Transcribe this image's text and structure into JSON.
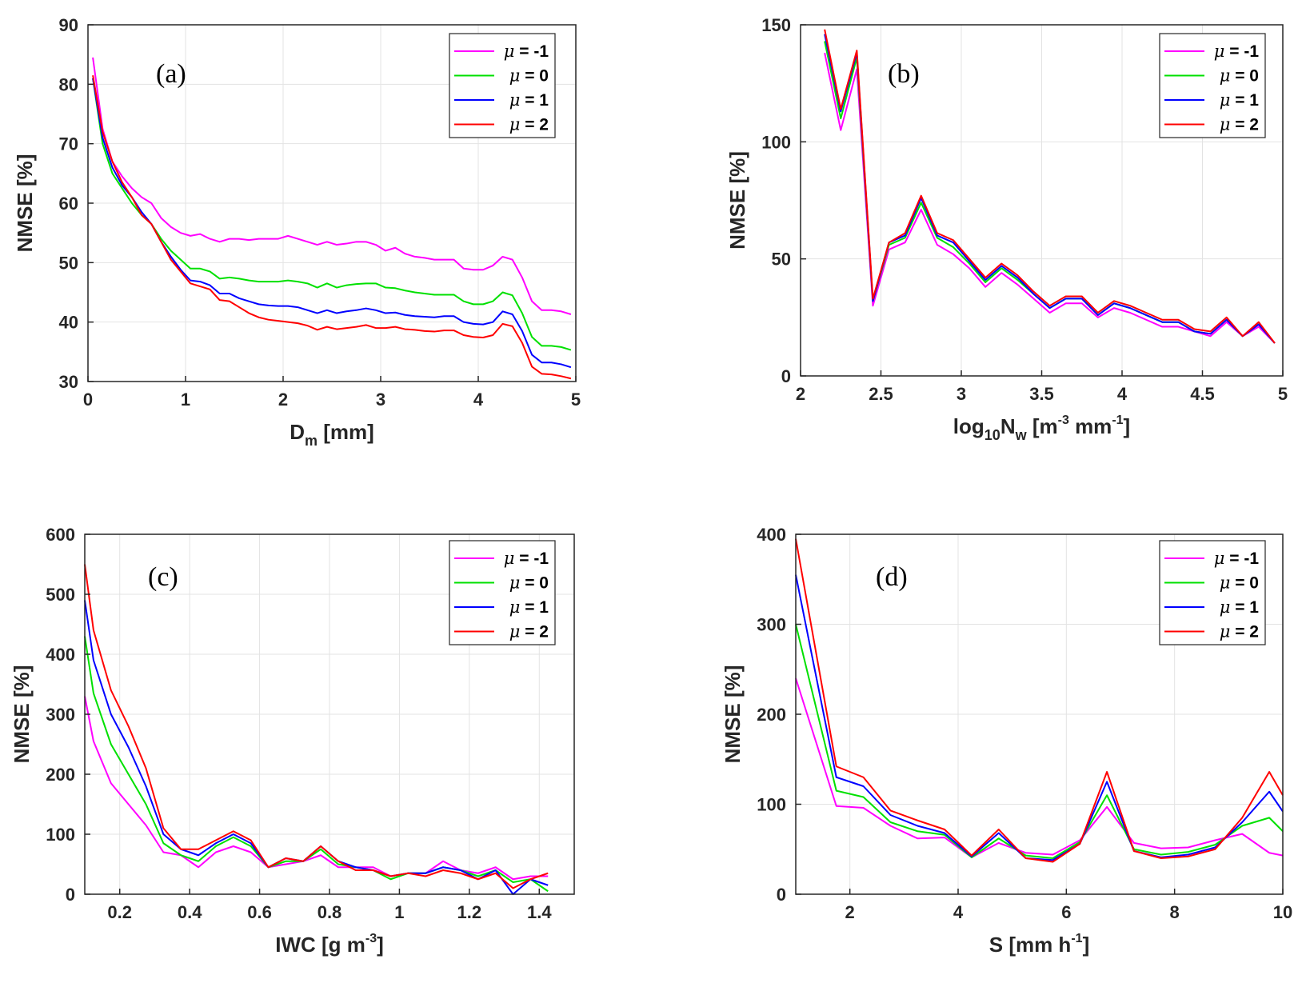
{
  "colors": {
    "mu_-1": "#ff00ff",
    "mu_0": "#00e000",
    "mu_1": "#0000ff",
    "mu_2": "#ff0000"
  },
  "chart_data": [
    {
      "type": "line",
      "panel": "(a)",
      "xlabel": {
        "main": "D",
        "sub": "m",
        "tail": " [mm]"
      },
      "ylabel": "NMSE [%]",
      "xlim": [
        0,
        5
      ],
      "ylim": [
        30,
        90
      ],
      "xticks": [
        0,
        1,
        2,
        3,
        4,
        5
      ],
      "yticks": [
        30,
        40,
        50,
        60,
        70,
        80,
        90
      ],
      "grid": true,
      "legend": "top-right",
      "x": [
        0.05,
        0.15,
        0.25,
        0.35,
        0.45,
        0.55,
        0.65,
        0.75,
        0.85,
        0.95,
        1.05,
        1.15,
        1.25,
        1.35,
        1.45,
        1.55,
        1.65,
        1.75,
        1.85,
        1.95,
        2.05,
        2.15,
        2.25,
        2.35,
        2.45,
        2.55,
        2.65,
        2.75,
        2.85,
        2.95,
        3.05,
        3.15,
        3.25,
        3.35,
        3.45,
        3.55,
        3.65,
        3.75,
        3.85,
        3.95,
        4.05,
        4.15,
        4.25,
        4.35,
        4.45,
        4.55,
        4.65,
        4.75,
        4.85,
        4.95
      ],
      "series": [
        {
          "name": "μ = -1",
          "color_key": "mu_-1",
          "values": [
            84.5,
            72.5,
            67,
            64.5,
            62.5,
            61,
            60,
            57.5,
            56,
            55,
            54.5,
            54.8,
            54,
            53.5,
            54,
            54,
            53.8,
            54,
            54,
            54,
            54.5,
            54,
            53.5,
            53,
            53.5,
            53,
            53.2,
            53.5,
            53.5,
            53,
            52,
            52.5,
            51.5,
            51,
            50.8,
            50.5,
            50.5,
            50.5,
            49,
            48.8,
            48.8,
            49.5,
            51,
            50.5,
            47.5,
            43.5,
            42,
            42,
            41.8,
            41.3
          ]
        },
        {
          "name": "μ = 0",
          "color_key": "mu_0",
          "values": [
            81,
            70,
            65,
            62.5,
            60,
            58,
            56.5,
            54,
            52,
            50.5,
            49,
            49,
            48.5,
            47.3,
            47.5,
            47.3,
            47,
            46.8,
            46.8,
            46.8,
            47,
            46.8,
            46.5,
            45.8,
            46.5,
            45.8,
            46.2,
            46.4,
            46.5,
            46.5,
            45.8,
            45.7,
            45.3,
            45,
            44.8,
            44.6,
            44.6,
            44.6,
            43.5,
            43,
            43,
            43.5,
            45,
            44.5,
            41.5,
            37.5,
            36,
            36,
            35.8,
            35.3
          ]
        },
        {
          "name": "μ = 1",
          "color_key": "mu_1",
          "values": [
            81,
            71,
            66,
            63,
            61,
            58.5,
            56.5,
            53.5,
            51,
            48.8,
            47,
            46.8,
            46.2,
            44.8,
            44.8,
            44,
            43.5,
            43,
            42.8,
            42.7,
            42.7,
            42.5,
            42,
            41.5,
            42,
            41.5,
            41.8,
            42,
            42.3,
            42,
            41.5,
            41.6,
            41.2,
            41,
            40.9,
            40.8,
            41,
            41,
            40,
            39.7,
            39.6,
            40,
            41.8,
            41.3,
            38.5,
            34.5,
            33.2,
            33.2,
            32.9,
            32.4
          ]
        },
        {
          "name": "μ = 2",
          "color_key": "mu_2",
          "values": [
            81.5,
            72,
            67,
            63.5,
            61,
            58,
            56.5,
            53.5,
            50.5,
            48.5,
            46.5,
            46,
            45.5,
            43.7,
            43.5,
            42.5,
            41.5,
            40.8,
            40.4,
            40.2,
            40,
            39.8,
            39.4,
            38.7,
            39.2,
            38.8,
            39,
            39.2,
            39.5,
            39,
            39,
            39.2,
            38.8,
            38.7,
            38.5,
            38.4,
            38.6,
            38.6,
            37.8,
            37.5,
            37.4,
            37.8,
            39.7,
            39.3,
            36.5,
            32.5,
            31.3,
            31.2,
            30.9,
            30.5
          ]
        }
      ]
    },
    {
      "type": "line",
      "panel": "(b)",
      "xlabel": {
        "pre": "log",
        "sub": "10",
        "main": "N",
        "sub2": "w",
        "tail": " [m",
        "sup": "-3",
        "tail2": " mm",
        "sup2": "-1",
        "end": "]"
      },
      "ylabel": "NMSE [%]",
      "xlim": [
        2,
        5
      ],
      "ylim": [
        0,
        150
      ],
      "xticks": [
        2,
        2.5,
        3,
        3.5,
        4,
        4.5,
        5
      ],
      "yticks": [
        0,
        50,
        100,
        150
      ],
      "grid": true,
      "legend": "top-right",
      "x": [
        2.15,
        2.25,
        2.35,
        2.45,
        2.55,
        2.65,
        2.75,
        2.85,
        2.95,
        3.05,
        3.15,
        3.25,
        3.35,
        3.45,
        3.55,
        3.65,
        3.75,
        3.85,
        3.95,
        4.05,
        4.15,
        4.25,
        4.35,
        4.45,
        4.55,
        4.65,
        4.75,
        4.85,
        4.95
      ],
      "series": [
        {
          "name": "μ = -1",
          "color_key": "mu_-1",
          "values": [
            138,
            105,
            131,
            30,
            54,
            57,
            71,
            56,
            52,
            46,
            38,
            44,
            39,
            33,
            27,
            31,
            31,
            25,
            29,
            27,
            24,
            21,
            21,
            19,
            17,
            23,
            17,
            21,
            14
          ]
        },
        {
          "name": "μ = 0",
          "color_key": "mu_0",
          "values": [
            143,
            110,
            136,
            32,
            56,
            59,
            74,
            59,
            55,
            48,
            40,
            46,
            41,
            35,
            29,
            33,
            33,
            26,
            31,
            29,
            26,
            23,
            23,
            19,
            18,
            24,
            17,
            22,
            14
          ]
        },
        {
          "name": "μ = 1",
          "color_key": "mu_1",
          "values": [
            146,
            113,
            138,
            32,
            57,
            60,
            76,
            60,
            57,
            49,
            41,
            47,
            42,
            35,
            29,
            33,
            33,
            26,
            31,
            29,
            26,
            23,
            23,
            19,
            18,
            24,
            17,
            22,
            14
          ]
        },
        {
          "name": "μ = 2",
          "color_key": "mu_2",
          "values": [
            148,
            114,
            139,
            33,
            57,
            61,
            77,
            61,
            58,
            50,
            42,
            48,
            43,
            36,
            30,
            34,
            34,
            27,
            32,
            30,
            27,
            24,
            24,
            20,
            19,
            25,
            17,
            23,
            14
          ]
        }
      ]
    },
    {
      "type": "line",
      "panel": "(c)",
      "xlabel": {
        "main": "IWC [g m",
        "sup": "-3",
        "end": "]"
      },
      "ylabel": "NMSE [%]",
      "xlim": [
        0.1,
        1.5
      ],
      "ylim": [
        0,
        600
      ],
      "xticks": [
        0.2,
        0.4,
        0.6,
        0.8,
        1,
        1.2,
        1.4
      ],
      "yticks": [
        0,
        100,
        200,
        300,
        400,
        500,
        600
      ],
      "grid": true,
      "legend": "top-right",
      "x": [
        0.1,
        0.125,
        0.175,
        0.225,
        0.275,
        0.325,
        0.375,
        0.425,
        0.475,
        0.525,
        0.575,
        0.625,
        0.675,
        0.725,
        0.775,
        0.825,
        0.875,
        0.925,
        0.975,
        1.025,
        1.075,
        1.125,
        1.175,
        1.225,
        1.275,
        1.325,
        1.375,
        1.425
      ],
      "series": [
        {
          "name": "μ = -1",
          "color_key": "mu_-1",
          "values": [
            330,
            255,
            185,
            150,
            115,
            70,
            65,
            45,
            70,
            80,
            70,
            45,
            50,
            55,
            65,
            45,
            45,
            45,
            30,
            35,
            35,
            55,
            40,
            35,
            45,
            25,
            30,
            30
          ]
        },
        {
          "name": "μ = 0",
          "color_key": "mu_0",
          "values": [
            430,
            335,
            250,
            200,
            150,
            85,
            65,
            55,
            80,
            95,
            80,
            45,
            55,
            55,
            75,
            50,
            45,
            40,
            25,
            35,
            35,
            45,
            40,
            30,
            40,
            20,
            25,
            5
          ]
        },
        {
          "name": "μ = 1",
          "color_key": "mu_1",
          "values": [
            490,
            390,
            300,
            245,
            180,
            100,
            75,
            65,
            85,
            100,
            85,
            45,
            60,
            55,
            80,
            55,
            45,
            40,
            30,
            35,
            35,
            45,
            40,
            25,
            40,
            0,
            25,
            15
          ]
        },
        {
          "name": "μ = 2",
          "color_key": "mu_2",
          "values": [
            550,
            440,
            340,
            280,
            210,
            110,
            75,
            75,
            90,
            105,
            90,
            45,
            60,
            55,
            80,
            55,
            40,
            40,
            30,
            35,
            30,
            40,
            35,
            25,
            35,
            10,
            25,
            35
          ]
        }
      ]
    },
    {
      "type": "line",
      "panel": "(d)",
      "xlabel": {
        "main": "S [mm h",
        "sup": "-1",
        "end": "]"
      },
      "ylabel": "NMSE [%]",
      "xlim": [
        1,
        10
      ],
      "ylim": [
        0,
        400
      ],
      "xticks": [
        2,
        4,
        6,
        8,
        10
      ],
      "yticks": [
        0,
        100,
        200,
        300,
        400
      ],
      "grid": true,
      "legend": "top-right",
      "x": [
        1,
        1.75,
        2.25,
        2.75,
        3.25,
        3.75,
        4.25,
        4.75,
        5.25,
        5.75,
        6.25,
        6.75,
        7.25,
        7.75,
        8.25,
        8.75,
        9.25,
        9.75,
        10
      ],
      "series": [
        {
          "name": "μ = -1",
          "color_key": "mu_-1",
          "values": [
            240,
            98,
            96,
            76,
            62,
            63,
            41,
            57,
            46,
            44,
            60,
            97,
            57,
            51,
            52,
            60,
            67,
            46,
            43
          ]
        },
        {
          "name": "μ = 0",
          "color_key": "mu_0",
          "values": [
            300,
            115,
            108,
            80,
            70,
            66,
            41,
            62,
            43,
            40,
            58,
            110,
            50,
            44,
            47,
            55,
            76,
            85,
            70
          ]
        },
        {
          "name": "μ = 1",
          "color_key": "mu_1",
          "values": [
            355,
            130,
            120,
            88,
            76,
            68,
            42,
            68,
            40,
            38,
            56,
            125,
            48,
            41,
            44,
            52,
            80,
            114,
            92
          ]
        },
        {
          "name": "μ = 2",
          "color_key": "mu_2",
          "values": [
            395,
            142,
            130,
            93,
            82,
            72,
            43,
            72,
            40,
            36,
            56,
            136,
            48,
            40,
            42,
            50,
            85,
            136,
            110
          ]
        }
      ]
    }
  ]
}
